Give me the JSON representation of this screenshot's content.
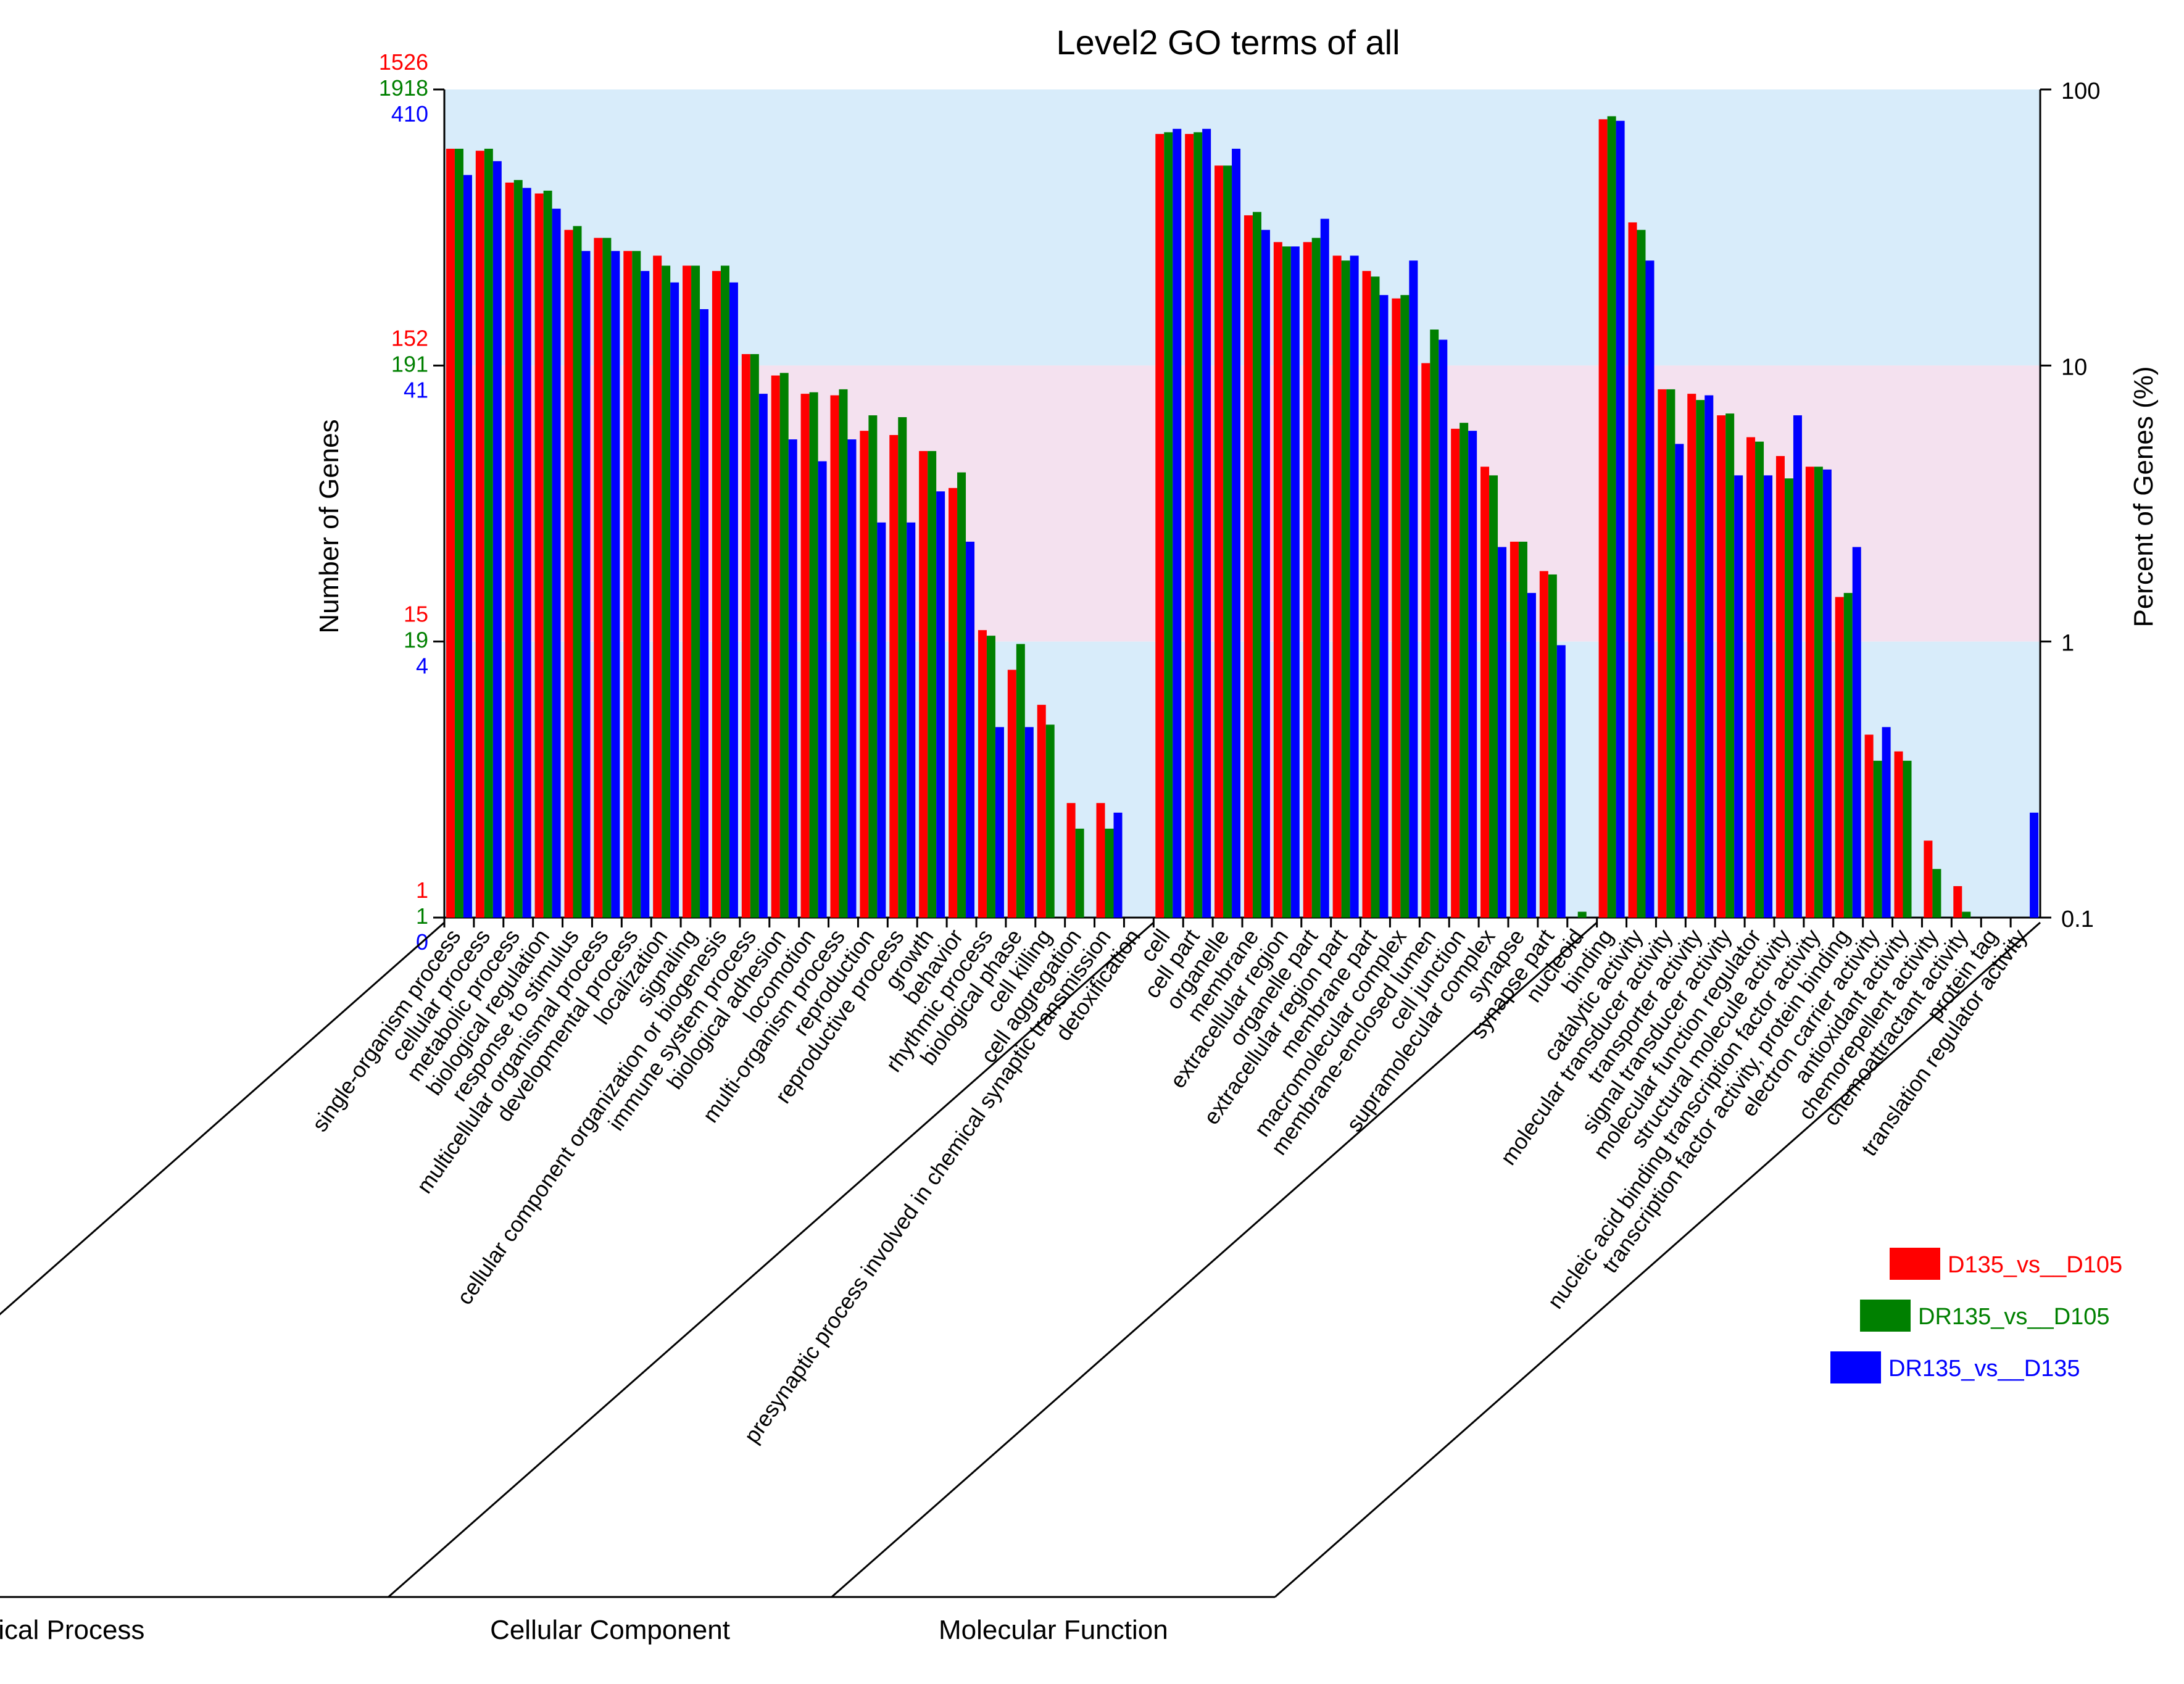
{
  "chart_data": {
    "type": "bar",
    "title": "Level2 GO terms of all",
    "ylabel_left": "Number of Genes",
    "ylabel_right": "Percent of Genes (%)",
    "yscale": "log",
    "ylim_percent": [
      0.1,
      100
    ],
    "right_ticks": [
      "100",
      "10",
      "1",
      "0.1"
    ],
    "left_ticks": [
      {
        "color": "#ff0000",
        "values": [
          "1526",
          "152",
          "15",
          "1"
        ]
      },
      {
        "color": "#008000",
        "values": [
          "1918",
          "191",
          "19",
          "1"
        ]
      },
      {
        "color": "#0000ff",
        "values": [
          "410",
          "41",
          "4",
          "0"
        ]
      }
    ],
    "series": [
      {
        "name": "D135_vs__D105",
        "color": "#ff0000"
      },
      {
        "name": "DR135_vs__D105",
        "color": "#008000"
      },
      {
        "name": "DR135_vs__D135",
        "color": "#0000ff"
      }
    ],
    "categories": [
      {
        "label": "single-organism process",
        "group": "Biological Process",
        "values": [
          61,
          61,
          49
        ]
      },
      {
        "label": "cellular process",
        "group": "Biological Process",
        "values": [
          60,
          61,
          55
        ]
      },
      {
        "label": "metabolic process",
        "group": "Biological Process",
        "values": [
          46,
          47,
          44
        ]
      },
      {
        "label": "biological regulation",
        "group": "Biological Process",
        "values": [
          42,
          43,
          37
        ]
      },
      {
        "label": "response to stimulus",
        "group": "Biological Process",
        "values": [
          31,
          32,
          26
        ]
      },
      {
        "label": "multicellular organismal process",
        "group": "Biological Process",
        "values": [
          29,
          29,
          26
        ]
      },
      {
        "label": "developmental process",
        "group": "Biological Process",
        "values": [
          26,
          26,
          22
        ]
      },
      {
        "label": "localization",
        "group": "Biological Process",
        "values": [
          25,
          23,
          20
        ]
      },
      {
        "label": "signaling",
        "group": "Biological Process",
        "values": [
          23,
          23,
          16
        ]
      },
      {
        "label": "cellular component organization or biogenesis",
        "group": "Biological Process",
        "values": [
          22,
          23,
          20
        ]
      },
      {
        "label": "immune system process",
        "group": "Biological Process",
        "values": [
          11,
          11,
          7.9
        ]
      },
      {
        "label": "biological adhesion",
        "group": "Biological Process",
        "values": [
          9.2,
          9.4,
          5.4
        ]
      },
      {
        "label": "locomotion",
        "group": "Biological Process",
        "values": [
          7.9,
          8.0,
          4.5
        ]
      },
      {
        "label": "multi-organism process",
        "group": "Biological Process",
        "values": [
          7.8,
          8.2,
          5.4
        ]
      },
      {
        "label": "reproduction",
        "group": "Biological Process",
        "values": [
          5.8,
          6.6,
          2.7
        ]
      },
      {
        "label": "reproductive process",
        "group": "Biological Process",
        "values": [
          5.6,
          6.5,
          2.7
        ]
      },
      {
        "label": "growth",
        "group": "Biological Process",
        "values": [
          4.9,
          4.9,
          3.5
        ]
      },
      {
        "label": "behavior",
        "group": "Biological Process",
        "values": [
          3.6,
          4.1,
          2.3
        ]
      },
      {
        "label": "rhythmic process",
        "group": "Biological Process",
        "values": [
          1.1,
          1.05,
          0.49
        ]
      },
      {
        "label": "biological phase",
        "group": "Biological Process",
        "values": [
          0.79,
          0.98,
          0.49
        ]
      },
      {
        "label": "cell killing",
        "group": "Biological Process",
        "values": [
          0.59,
          0.5,
          0
        ]
      },
      {
        "label": "cell aggregation",
        "group": "Biological Process",
        "values": [
          0.26,
          0.21,
          0
        ]
      },
      {
        "label": "presynaptic process involved in chemical synaptic transmission",
        "group": "Biological Process",
        "values": [
          0.26,
          0.21,
          0.24
        ]
      },
      {
        "label": "detoxification",
        "group": "Biological Process",
        "values": [
          0,
          0,
          0
        ]
      },
      {
        "label": "cell",
        "group": "Cellular Component",
        "values": [
          69,
          70,
          72
        ]
      },
      {
        "label": "cell part",
        "group": "Cellular Component",
        "values": [
          69,
          70,
          72
        ]
      },
      {
        "label": "organelle",
        "group": "Cellular Component",
        "values": [
          53,
          53,
          61
        ]
      },
      {
        "label": "membrane",
        "group": "Cellular Component",
        "values": [
          35,
          36,
          31
        ]
      },
      {
        "label": "extracellular region",
        "group": "Cellular Component",
        "values": [
          28,
          27,
          27
        ]
      },
      {
        "label": "organelle part",
        "group": "Cellular Component",
        "values": [
          28,
          29,
          34
        ]
      },
      {
        "label": "extracellular region part",
        "group": "Cellular Component",
        "values": [
          25,
          24,
          25
        ]
      },
      {
        "label": "membrane part",
        "group": "Cellular Component",
        "values": [
          22,
          21,
          18
        ]
      },
      {
        "label": "macromolecular complex",
        "group": "Cellular Component",
        "values": [
          17.5,
          18,
          24
        ]
      },
      {
        "label": "membrane-enclosed lumen",
        "group": "Cellular Component",
        "values": [
          10.2,
          13.5,
          12.4
        ]
      },
      {
        "label": "cell junction",
        "group": "Cellular Component",
        "values": [
          5.9,
          6.2,
          5.8
        ]
      },
      {
        "label": "supramolecular complex",
        "group": "Cellular Component",
        "values": [
          4.3,
          4.0,
          2.2
        ]
      },
      {
        "label": "synapse",
        "group": "Cellular Component",
        "values": [
          2.3,
          2.3,
          1.5
        ]
      },
      {
        "label": "synapse part",
        "group": "Cellular Component",
        "values": [
          1.8,
          1.75,
          0.97
        ]
      },
      {
        "label": "nucleoid",
        "group": "Cellular Component",
        "values": [
          0,
          0.105,
          0
        ]
      },
      {
        "label": "binding",
        "group": "Molecular Function",
        "values": [
          78,
          80,
          77
        ]
      },
      {
        "label": "catalytic activity",
        "group": "Molecular Function",
        "values": [
          33,
          31,
          24
        ]
      },
      {
        "label": "molecular transducer activity",
        "group": "Molecular Function",
        "values": [
          8.2,
          8.2,
          5.2
        ]
      },
      {
        "label": "transporter activity",
        "group": "Molecular Function",
        "values": [
          7.9,
          7.5,
          7.8
        ]
      },
      {
        "label": "signal transducer activity",
        "group": "Molecular Function",
        "values": [
          6.6,
          6.7,
          4.0
        ]
      },
      {
        "label": "molecular function regulator",
        "group": "Molecular Function",
        "values": [
          5.5,
          5.3,
          4.0
        ]
      },
      {
        "label": "structural molecule activity",
        "group": "Molecular Function",
        "values": [
          4.7,
          3.9,
          6.6
        ]
      },
      {
        "label": "nucleic acid binding transcription factor activity",
        "group": "Molecular Function",
        "values": [
          4.3,
          4.3,
          4.2
        ]
      },
      {
        "label": "transcription factor activity, protein binding",
        "group": "Molecular Function",
        "values": [
          1.45,
          1.5,
          2.2
        ]
      },
      {
        "label": "electron carrier activity",
        "group": "Molecular Function",
        "values": [
          0.46,
          0.37,
          0.49
        ]
      },
      {
        "label": "antioxidant activity",
        "group": "Molecular Function",
        "values": [
          0.4,
          0.37,
          0
        ]
      },
      {
        "label": "chemorepellent activity",
        "group": "Molecular Function",
        "values": [
          0.19,
          0.15,
          0
        ]
      },
      {
        "label": "chemoattractant activity",
        "group": "Molecular Function",
        "values": [
          0.13,
          0.105,
          0
        ]
      },
      {
        "label": "protein tag",
        "group": "Molecular Function",
        "values": [
          0,
          0,
          0
        ]
      },
      {
        "label": "translation regulator activity",
        "group": "Molecular Function",
        "values": [
          0,
          0,
          0.24
        ]
      }
    ],
    "groups": [
      "Biological Process",
      "Cellular Component",
      "Molecular Function"
    ]
  }
}
